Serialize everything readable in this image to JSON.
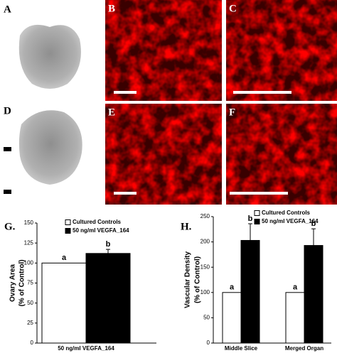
{
  "panels": {
    "a": "A",
    "b": "B",
    "c": "C",
    "d": "D",
    "e": "E",
    "f": "F"
  },
  "chart_data": [
    {
      "type": "bar",
      "panel_label": "G.",
      "ylabel": [
        "Ovary Area",
        "(% of Control)"
      ],
      "categories": [
        "50 ng/ml VEGFA_164"
      ],
      "series": [
        {
          "name": "Cultured Controls",
          "color": "#ffffff",
          "values": [
            100
          ],
          "errors": [
            null
          ],
          "letters": [
            "a"
          ]
        },
        {
          "name": "50 ng/ml VEGFA_164",
          "color": "#000000",
          "values": [
            112
          ],
          "errors": [
            5
          ],
          "letters": [
            "b"
          ]
        }
      ],
      "ylim": [
        0,
        150
      ],
      "yticks": [
        0,
        25,
        50,
        75,
        100,
        125,
        150
      ]
    },
    {
      "type": "bar",
      "panel_label": "H.",
      "ylabel": [
        "Vascular Density",
        "(% of Control)"
      ],
      "categories": [
        "Middle Slice",
        "Merged Organ"
      ],
      "series": [
        {
          "name": "Cultured Controls",
          "color": "#ffffff",
          "values": [
            100,
            100
          ],
          "errors": [
            null,
            null
          ],
          "letters": [
            "a",
            "a"
          ]
        },
        {
          "name": "50 ng/ml VEGFA_164",
          "color": "#000000",
          "values": [
            203,
            193
          ],
          "errors": [
            33,
            33
          ],
          "letters": [
            "b",
            "b"
          ]
        }
      ],
      "ylim": [
        0,
        250
      ],
      "yticks": [
        0,
        50,
        100,
        150,
        200,
        250
      ]
    }
  ]
}
